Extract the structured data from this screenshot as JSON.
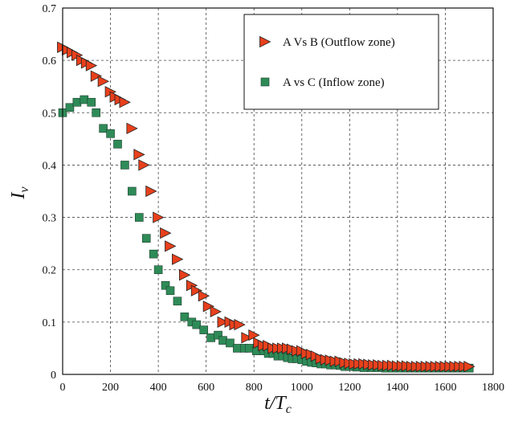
{
  "chart_data": {
    "type": "scatter",
    "title": "",
    "xlabel": "t/T",
    "xlabel_sub": "c",
    "ylabel": "I",
    "ylabel_sub": "v",
    "xlim": [
      0,
      1800
    ],
    "ylim": [
      0,
      0.7
    ],
    "xticks": [
      "0",
      "200",
      "400",
      "600",
      "800",
      "1000",
      "1200",
      "1400",
      "1600",
      "1800"
    ],
    "yticks": [
      "0",
      "0.1",
      "0.2",
      "0.3",
      "0.4",
      "0.5",
      "0.6",
      "0.7"
    ],
    "grid": true,
    "legend_position": "top-right",
    "series": [
      {
        "name": "A Vs B (Outflow zone)",
        "marker": "triangle-right",
        "color": "#e8401c",
        "x": [
          0,
          20,
          40,
          60,
          80,
          100,
          120,
          140,
          170,
          200,
          220,
          240,
          260,
          290,
          320,
          340,
          370,
          400,
          430,
          450,
          480,
          510,
          540,
          560,
          590,
          610,
          640,
          670,
          700,
          720,
          740,
          770,
          800,
          820,
          840,
          860,
          880,
          900,
          920,
          940,
          960,
          980,
          1000,
          1020,
          1040,
          1060,
          1080,
          1100,
          1120,
          1140,
          1160,
          1180,
          1200,
          1220,
          1240,
          1260,
          1280,
          1300,
          1320,
          1340,
          1360,
          1380,
          1400,
          1420,
          1440,
          1460,
          1480,
          1500,
          1520,
          1540,
          1560,
          1580,
          1600,
          1620,
          1640,
          1660,
          1680,
          1700
        ],
        "y": [
          0.625,
          0.62,
          0.615,
          0.61,
          0.6,
          0.595,
          0.59,
          0.57,
          0.56,
          0.54,
          0.53,
          0.525,
          0.52,
          0.47,
          0.42,
          0.4,
          0.35,
          0.3,
          0.27,
          0.245,
          0.22,
          0.19,
          0.17,
          0.16,
          0.15,
          0.13,
          0.12,
          0.1,
          0.1,
          0.095,
          0.095,
          0.07,
          0.075,
          0.06,
          0.055,
          0.055,
          0.05,
          0.05,
          0.05,
          0.05,
          0.048,
          0.045,
          0.045,
          0.04,
          0.038,
          0.035,
          0.03,
          0.028,
          0.027,
          0.025,
          0.025,
          0.022,
          0.021,
          0.02,
          0.02,
          0.02,
          0.019,
          0.018,
          0.018,
          0.017,
          0.017,
          0.017,
          0.016,
          0.016,
          0.016,
          0.015,
          0.015,
          0.015,
          0.015,
          0.015,
          0.015,
          0.015,
          0.015,
          0.015,
          0.015,
          0.015,
          0.015,
          0.015
        ]
      },
      {
        "name": "A vs C (Inflow zone)",
        "marker": "square",
        "color": "#2e8b57",
        "x": [
          0,
          30,
          60,
          90,
          120,
          140,
          170,
          200,
          230,
          260,
          290,
          320,
          350,
          380,
          400,
          430,
          450,
          480,
          510,
          540,
          560,
          590,
          620,
          650,
          670,
          700,
          730,
          760,
          780,
          810,
          840,
          860,
          880,
          900,
          920,
          940,
          960,
          980,
          1000,
          1020,
          1040,
          1060,
          1080,
          1100,
          1120,
          1140,
          1160,
          1180,
          1200,
          1230,
          1260,
          1290,
          1320,
          1350,
          1380,
          1410,
          1440,
          1470,
          1500,
          1530,
          1560,
          1590,
          1620,
          1650,
          1680,
          1700
        ],
        "y": [
          0.5,
          0.51,
          0.52,
          0.525,
          0.52,
          0.5,
          0.47,
          0.46,
          0.44,
          0.4,
          0.35,
          0.3,
          0.26,
          0.23,
          0.2,
          0.17,
          0.16,
          0.14,
          0.11,
          0.1,
          0.095,
          0.085,
          0.07,
          0.075,
          0.065,
          0.06,
          0.05,
          0.05,
          0.05,
          0.045,
          0.045,
          0.04,
          0.04,
          0.035,
          0.035,
          0.032,
          0.03,
          0.03,
          0.028,
          0.025,
          0.023,
          0.022,
          0.02,
          0.02,
          0.018,
          0.018,
          0.017,
          0.015,
          0.015,
          0.014,
          0.013,
          0.013,
          0.013,
          0.012,
          0.012,
          0.012,
          0.012,
          0.012,
          0.012,
          0.012,
          0.012,
          0.012,
          0.012,
          0.012,
          0.012,
          0.012
        ]
      }
    ]
  }
}
